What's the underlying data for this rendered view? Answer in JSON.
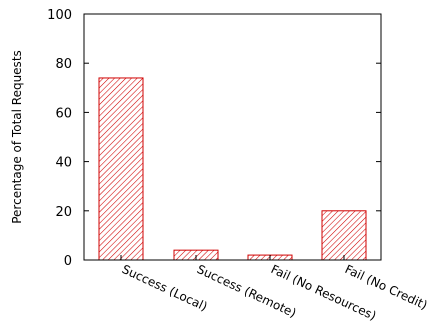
{
  "chart_data": {
    "type": "bar",
    "categories": [
      "Success (Local)",
      "Success (Remote)",
      "Fail (No Resources)",
      "Fail (No Credit)"
    ],
    "values": [
      74,
      4,
      2,
      20
    ],
    "ylabel": "Percentage of Total Requests",
    "xlabel": "",
    "ylim": [
      0,
      100
    ],
    "yticks": [
      "0",
      "20",
      "40",
      "60",
      "80",
      "100"
    ],
    "grid": false,
    "bar_pattern": "diagonal-hatch",
    "bar_color": "#d00000"
  }
}
